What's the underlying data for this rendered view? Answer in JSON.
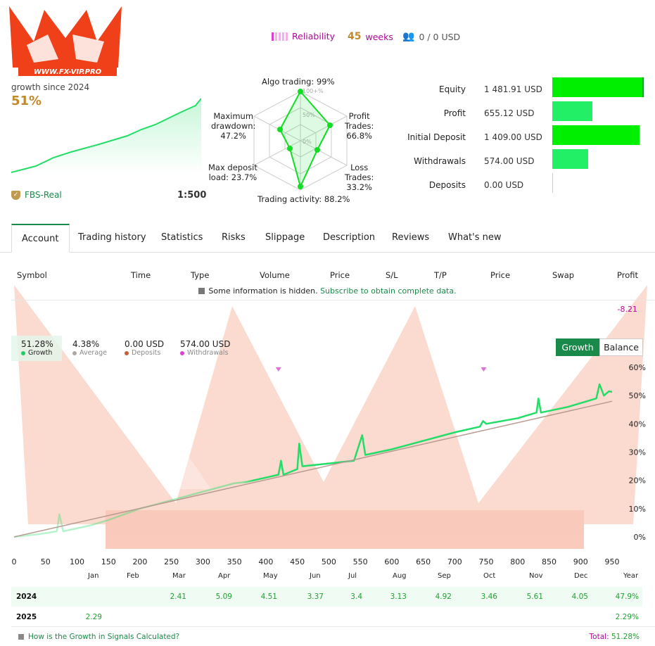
{
  "logo": {
    "text": "WWW.FX-VIP.PRO",
    "letters": "VIP"
  },
  "header": {
    "reliability_label": "Reliability",
    "weeks_value": "45",
    "weeks_label": "weeks",
    "subscribers": "0 / 0 USD"
  },
  "summary": {
    "growth_label": "growth since 2024",
    "growth_value": "51%",
    "broker": "FBS-Real",
    "leverage": "1:500"
  },
  "radar": {
    "scale_labels": [
      "100+%",
      "50%",
      "0%"
    ],
    "axes": [
      {
        "label": "Algo trading: 99%",
        "value": 99
      },
      {
        "label": "Profit Trades: 66.8%",
        "value": 66.8
      },
      {
        "label": "Loss Trades: 33.2%",
        "value": 33.2
      },
      {
        "label": "Trading activity: 88.2%",
        "value": 88.2
      },
      {
        "label": "Max deposit load: 23.7%",
        "value": 23.7
      },
      {
        "label": "Maximum drawdown: 47.2%",
        "value": 47.2
      }
    ],
    "lines": {
      "algo": "Algo trading: 99%",
      "profit1": "Profit",
      "profit2": "Trades:",
      "profit3": "66.8%",
      "loss1": "Loss",
      "loss2": "Trades:",
      "loss3": "33.2%",
      "activity": "Trading activity: 88.2%",
      "load1": "Max deposit",
      "load2": "load: 23.7%",
      "dd1": "Maximum",
      "dd2": "drawdown:",
      "dd3": "47.2%"
    }
  },
  "stats": [
    {
      "label": "Equity",
      "value": "1 481.91 USD",
      "fill": 1.0
    },
    {
      "label": "Profit",
      "value": "655.12 USD",
      "fill": 0.44
    },
    {
      "label": "Initial Deposit",
      "value": "1 409.00 USD",
      "fill": 0.95
    },
    {
      "label": "Withdrawals",
      "value": "574.00 USD",
      "fill": 0.39
    },
    {
      "label": "Deposits",
      "value": "0.00 USD",
      "fill": 0
    }
  ],
  "tabs": [
    "Account",
    "Trading history",
    "Statistics",
    "Risks",
    "Slippage",
    "Description",
    "Reviews",
    "What's new"
  ],
  "table": {
    "headers": [
      "Symbol",
      "Time",
      "Type",
      "Volume",
      "Price",
      "S/L",
      "T/P",
      "Price",
      "Swap",
      "Profit"
    ],
    "hidden_text": "Some information is hidden.",
    "subscribe_link": "Subscribe to obtain complete data.",
    "total_profit": "-8.21"
  },
  "chart_legend": [
    {
      "value": "51.28%",
      "label": "Growth",
      "color": "#22cc66"
    },
    {
      "value": "4.38%",
      "label": "Average",
      "color": "#b0a8a0"
    },
    {
      "value": "0.00 USD",
      "label": "Deposits",
      "color": "#c0603a"
    },
    {
      "value": "574.00 USD",
      "label": "Withdrawals",
      "color": "#e040d0"
    }
  ],
  "chart_buttons": {
    "growth": "Growth",
    "balance": "Balance"
  },
  "chart_data": {
    "type": "line",
    "x_ticks": [
      "0",
      "50",
      "100",
      "150",
      "200",
      "250",
      "300",
      "350",
      "400",
      "450",
      "500",
      "550",
      "600",
      "650",
      "700",
      "750",
      "800",
      "850",
      "900",
      "950"
    ],
    "y_ticks": [
      "0%",
      "10%",
      "20%",
      "30%",
      "40%",
      "50%",
      "60%"
    ],
    "xlim": [
      0,
      950
    ],
    "ylim": [
      0,
      60
    ],
    "grid": false,
    "series": [
      {
        "name": "Growth",
        "color": "#22dd66",
        "points": [
          [
            0,
            0
          ],
          [
            40,
            1
          ],
          [
            68,
            2
          ],
          [
            72,
            8
          ],
          [
            78,
            2
          ],
          [
            120,
            4
          ],
          [
            150,
            6
          ],
          [
            200,
            10
          ],
          [
            250,
            13
          ],
          [
            300,
            16
          ],
          [
            350,
            19
          ],
          [
            370,
            19.5
          ],
          [
            400,
            21
          ],
          [
            420,
            22
          ],
          [
            424,
            27
          ],
          [
            428,
            22
          ],
          [
            450,
            24
          ],
          [
            453,
            33
          ],
          [
            458,
            25
          ],
          [
            500,
            26
          ],
          [
            540,
            27
          ],
          [
            553,
            36
          ],
          [
            558,
            29
          ],
          [
            600,
            31
          ],
          [
            650,
            34
          ],
          [
            700,
            37
          ],
          [
            740,
            39
          ],
          [
            745,
            41
          ],
          [
            750,
            40
          ],
          [
            800,
            42
          ],
          [
            830,
            44
          ],
          [
            833,
            49
          ],
          [
            837,
            44
          ],
          [
            880,
            46
          ],
          [
            910,
            48
          ],
          [
            925,
            49
          ],
          [
            930,
            54
          ],
          [
            937,
            50
          ],
          [
            945,
            51.5
          ],
          [
            950,
            51.3
          ]
        ]
      },
      {
        "name": "Average",
        "color": "#b89a90",
        "points": [
          [
            0,
            0
          ],
          [
            950,
            48
          ]
        ]
      }
    ],
    "withdrawal_markers": [
      420,
      746
    ]
  },
  "monthly": {
    "months": [
      "Jan",
      "Feb",
      "Mar",
      "Apr",
      "May",
      "Jun",
      "Jul",
      "Aug",
      "Sep",
      "Oct",
      "Nov",
      "Dec",
      "Year"
    ],
    "rows": [
      {
        "year": "2024",
        "values": [
          "",
          "",
          "2.41",
          "5.09",
          "4.51",
          "3.37",
          "3.4",
          "3.13",
          "4.92",
          "3.46",
          "5.61",
          "4.05",
          "47.9%"
        ]
      },
      {
        "year": "2025",
        "values": [
          "2.29",
          "",
          "",
          "",
          "",
          "",
          "",
          "",
          "",
          "",
          "",
          "",
          "2.29%"
        ]
      }
    ],
    "help_link": "How is the Growth in Signals Calculated?",
    "total_label": "Total:",
    "total_value": "51.28%"
  }
}
